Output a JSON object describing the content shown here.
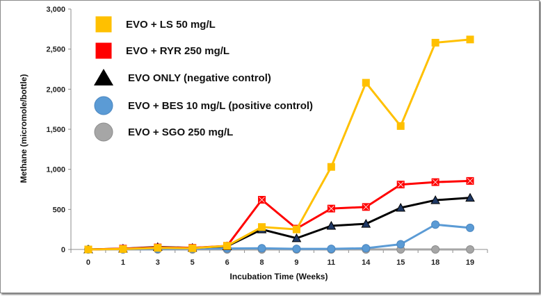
{
  "chart_data": {
    "type": "line",
    "xlabel": "Incubation Time (Weeks)",
    "ylabel": "Methane (micromole/bottle)",
    "categories": [
      "0",
      "1",
      "3",
      "5",
      "6",
      "8",
      "9",
      "11",
      "14",
      "15",
      "18",
      "19"
    ],
    "ylim": [
      0,
      3000
    ],
    "yticks": [
      "0",
      "500",
      "1,000",
      "1,500",
      "2,000",
      "2,500",
      "3,000"
    ],
    "legend_position": "top-left",
    "series": [
      {
        "name": "EVO + LS 50 mg/L",
        "color": "#ffc000",
        "marker": "square",
        "values": [
          0,
          5,
          20,
          15,
          45,
          280,
          250,
          1030,
          2080,
          1540,
          2580,
          2620
        ]
      },
      {
        "name": "EVO + RYR 250 mg/L",
        "color": "#ff0000",
        "marker": "square-x",
        "values": [
          0,
          10,
          25,
          20,
          45,
          620,
          260,
          510,
          530,
          810,
          840,
          855
        ]
      },
      {
        "name": "EVO ONLY (negative control)",
        "color": "#000000",
        "marker": "triangle",
        "values": [
          0,
          10,
          30,
          20,
          40,
          250,
          140,
          295,
          320,
          520,
          615,
          645
        ]
      },
      {
        "name": "EVO + BES 10 mg/L (positive control)",
        "color": "#5b9bd5",
        "marker": "circle",
        "values": [
          0,
          5,
          8,
          10,
          12,
          15,
          8,
          8,
          15,
          65,
          310,
          270
        ]
      },
      {
        "name": "EVO + SGO 250 mg/L",
        "color": "#a6a6a6",
        "marker": "circle",
        "values": [
          0,
          0,
          0,
          0,
          0,
          0,
          0,
          0,
          0,
          0,
          0,
          0
        ]
      }
    ]
  }
}
